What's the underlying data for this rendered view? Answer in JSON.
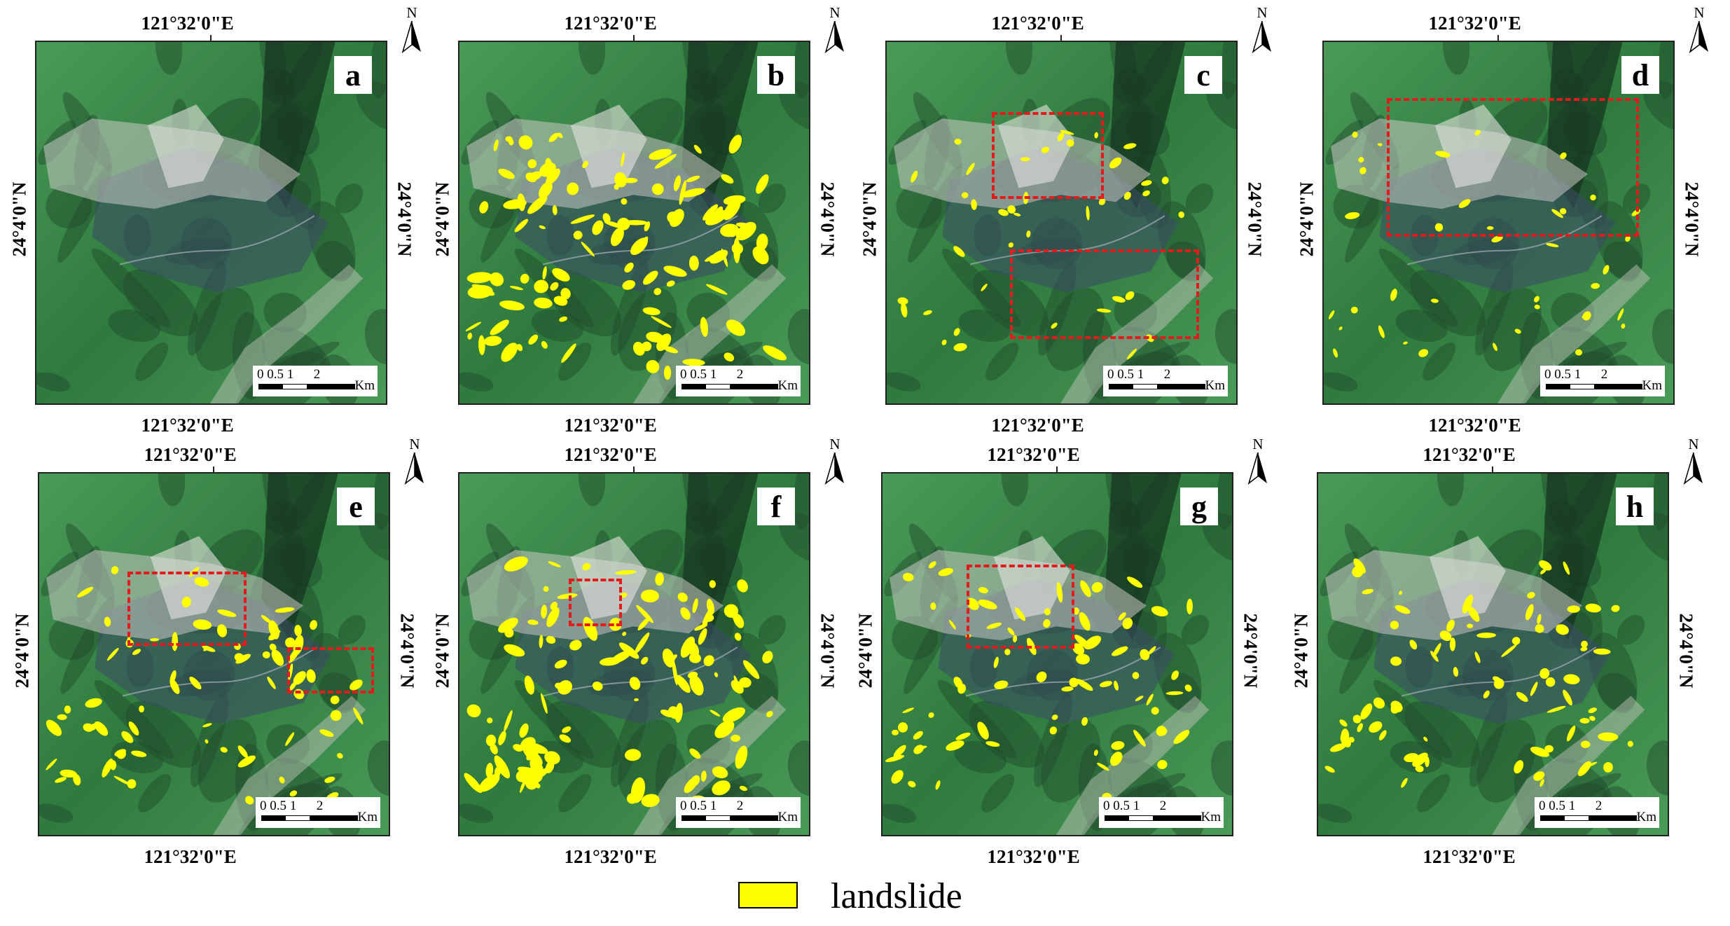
{
  "panels": [
    {
      "id": "a",
      "lon_top": "121°32'0\"E",
      "lon_bottom": "121°32'0\"E",
      "lat_left": "24°4'0\"N",
      "lat_right": "24°4'0\"N",
      "slide_level": 0,
      "red_boxes": 0
    },
    {
      "id": "b",
      "lon_top": "121°32'0\"E",
      "lon_bottom": "121°32'0\"E",
      "lat_left": "24°4'0\"N",
      "lat_right": "24°4'0\"N",
      "slide_level": 3,
      "red_boxes": 0
    },
    {
      "id": "c",
      "lon_top": "121°32'0\"E",
      "lon_bottom": "121°32'0\"E",
      "lat_left": "24°4'0\"N",
      "lat_right": "24°4'0\"N",
      "slide_level": 1,
      "red_boxes": 2
    },
    {
      "id": "d",
      "lon_top": "121°32'0\"E",
      "lon_bottom": "121°32'0\"E",
      "lat_left": "24°4'0\"N",
      "lat_right": "24°4'0\"N",
      "slide_level": 1,
      "red_boxes": 1
    },
    {
      "id": "e",
      "lon_top": "121°32'0\"E",
      "lon_bottom": "121°32'0\"E",
      "lat_left": "24°4'0\"N",
      "lat_right": "24°4'0\"N",
      "slide_level": 2,
      "red_boxes": 2
    },
    {
      "id": "f",
      "lon_top": "121°32'0\"E",
      "lon_bottom": "121°32'0\"E",
      "lat_left": "24°4'0\"N",
      "lat_right": "24°4'0\"N",
      "slide_level": 3,
      "red_boxes": 1
    },
    {
      "id": "g",
      "lon_top": "121°32'0\"E",
      "lon_bottom": "121°32'0\"E",
      "lat_left": "24°4'0\"N",
      "lat_right": "24°4'0\"N",
      "slide_level": 2,
      "red_boxes": 1
    },
    {
      "id": "h",
      "lon_top": "121°32'0\"E",
      "lon_bottom": "121°32'0\"E",
      "lat_left": "24°4'0\"N",
      "lat_right": "24°4'0\"N",
      "slide_level": 2,
      "red_boxes": 0
    }
  ],
  "scale_bar": {
    "numbers": "0 0.5 1      2",
    "unit": "Km"
  },
  "north_label": "N",
  "legend": {
    "label": "landslide",
    "color": "#ffff00"
  },
  "colors": {
    "forest_dark": "#1e4a2a",
    "forest": "#2f7a3e",
    "forest_light": "#4a9a58",
    "rock": "#c9c9c4",
    "shadow": "#3a4a66",
    "landslide": "#ffff00",
    "box": "#e41a1c"
  }
}
